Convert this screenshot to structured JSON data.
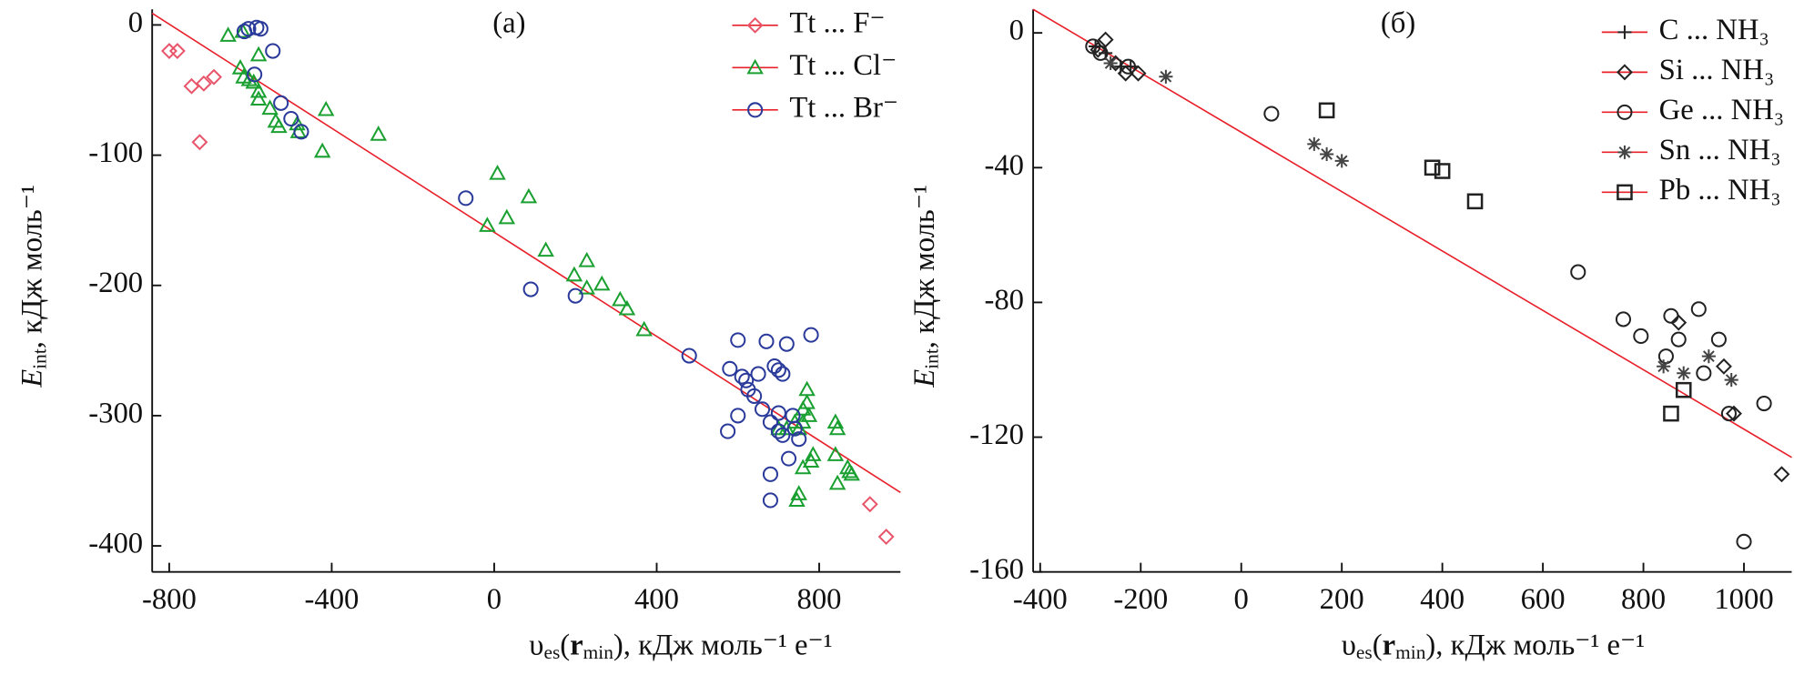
{
  "chart_data": [
    {
      "type": "scatter",
      "annotation": "(а)",
      "xlabel": [
        "υ",
        "es",
        "(",
        "r",
        "min",
        "), кДж моль⁻¹ e⁻¹"
      ],
      "ylabel": [
        "E",
        "int",
        ", кДж моль⁻¹"
      ],
      "xlim": [
        -842,
        1000
      ],
      "xticks": [
        -800,
        -400,
        0,
        400,
        800
      ],
      "ylim": [
        -420,
        12
      ],
      "yticks": [
        0,
        -100,
        -200,
        -300,
        -400
      ],
      "legend": "upper right",
      "trend": {
        "x": [
          -842,
          1000
        ],
        "y": [
          9,
          -359
        ],
        "color": "#e8202a"
      },
      "series": [
        {
          "name": "Tt ... F⁻",
          "marker": "diamond",
          "color": "#e8556a",
          "x": [
            -800,
            -780,
            -745,
            -715,
            -725,
            -690,
            925,
            965
          ],
          "values": [
            -20,
            -20,
            -47,
            -45,
            -90,
            -40,
            -368,
            -393
          ]
        },
        {
          "name": "Tt ... Cl⁻",
          "marker": "triangle",
          "color": "#1aa030",
          "x": [
            -655,
            -619,
            -625,
            -617,
            -603,
            -592,
            -580,
            -580,
            -580,
            -552,
            -538,
            -530,
            -485,
            -482,
            -414,
            -423,
            -285,
            -17,
            8,
            31,
            85,
            127,
            197,
            228,
            228,
            265,
            310,
            327,
            369,
            745,
            750,
            760,
            770,
            770,
            775,
            780,
            785,
            750,
            760,
            840,
            845,
            840,
            845,
            870,
            875,
            880,
            740,
            720,
            700,
            760
          ],
          "values": [
            -8,
            -5,
            -33,
            -40,
            -42,
            -44,
            -23,
            -51,
            -57,
            -64,
            -74,
            -78,
            -76,
            -82,
            -65,
            -97,
            -84,
            -154,
            -114,
            -148,
            -132,
            -173,
            -192,
            -181,
            -202,
            -199,
            -211,
            -218,
            -234,
            -365,
            -360,
            -340,
            -280,
            -290,
            -300,
            -335,
            -330,
            -310,
            -305,
            -305,
            -310,
            -330,
            -352,
            -340,
            -343,
            -345,
            -305,
            -310,
            -310,
            -295
          ]
        },
        {
          "name": "Tt ... Br⁻",
          "marker": "circle",
          "color": "#2a3a9a",
          "x": [
            -615,
            -605,
            -585,
            -575,
            -590,
            -545,
            -525,
            -500,
            -475,
            -70,
            90,
            200,
            480,
            575,
            580,
            600,
            600,
            610,
            620,
            625,
            640,
            650,
            660,
            670,
            680,
            680,
            680,
            690,
            700,
            700,
            710,
            710,
            720,
            725,
            735,
            740,
            750,
            780,
            700
          ],
          "values": [
            -5,
            -3,
            -2,
            -3,
            -38,
            -20,
            -60,
            -72,
            -82,
            -133,
            -203,
            -208,
            -254,
            -312,
            -264,
            -242,
            -300,
            -270,
            -273,
            -280,
            -285,
            -268,
            -295,
            -243,
            -345,
            -365,
            -305,
            -262,
            -265,
            -298,
            -268,
            -315,
            -245,
            -333,
            -300,
            -310,
            -318,
            -238,
            -312
          ]
        }
      ]
    },
    {
      "type": "scatter",
      "annotation": "(б)",
      "xlabel": [
        "υ",
        "es",
        "(",
        "r",
        "min",
        "), кДж моль⁻¹ e⁻¹"
      ],
      "ylabel": [
        "E",
        "int",
        ", кДж моль⁻¹"
      ],
      "xlim": [
        -414,
        1095
      ],
      "xticks": [
        -400,
        -200,
        0,
        200,
        400,
        600,
        800,
        1000
      ],
      "ylim": [
        -160,
        7
      ],
      "yticks": [
        0,
        -40,
        -80,
        -120,
        -160
      ],
      "legend": "upper right",
      "trend": {
        "x": [
          -414,
          1095
        ],
        "y": [
          7,
          -126
        ],
        "color": "#e8202a"
      },
      "series": [
        {
          "name": "C ... NH₃",
          "marker": "plus",
          "color": "#222222",
          "x": [
            -290,
            -270,
            -240,
            -220
          ],
          "values": [
            -4,
            -6,
            -10,
            -10
          ]
        },
        {
          "name": "Si ... NH₃",
          "marker": "diamond",
          "color": "#222222",
          "x": [
            -270,
            -285,
            -250,
            -230,
            -205,
            870,
            960,
            980,
            1075
          ],
          "values": [
            -2,
            -5,
            -9,
            -12,
            -12,
            -86,
            -99,
            -113,
            -131
          ]
        },
        {
          "name": "Ge ... NH₃",
          "marker": "circle",
          "color": "#222222",
          "x": [
            -295,
            -280,
            -225,
            60,
            670,
            760,
            795,
            845,
            855,
            870,
            910,
            920,
            950,
            970,
            1000,
            1040
          ],
          "values": [
            -4,
            -6,
            -10,
            -24,
            -71,
            -85,
            -90,
            -96,
            -84,
            -91,
            -82,
            -101,
            -91,
            -113,
            -151,
            -110
          ]
        },
        {
          "name": "Sn ... NH₃",
          "marker": "star",
          "color": "#444444",
          "x": [
            -150,
            145,
            170,
            200,
            840,
            880,
            930,
            975,
            -260
          ],
          "values": [
            -13,
            -33,
            -36,
            -38,
            -99,
            -101,
            -96,
            -103,
            -9
          ]
        },
        {
          "name": "Pb ... NH₃",
          "marker": "square",
          "color": "#222222",
          "x": [
            170,
            380,
            400,
            465,
            855,
            880
          ],
          "values": [
            -23,
            -40,
            -41,
            -50,
            -113,
            -106
          ]
        }
      ]
    }
  ]
}
